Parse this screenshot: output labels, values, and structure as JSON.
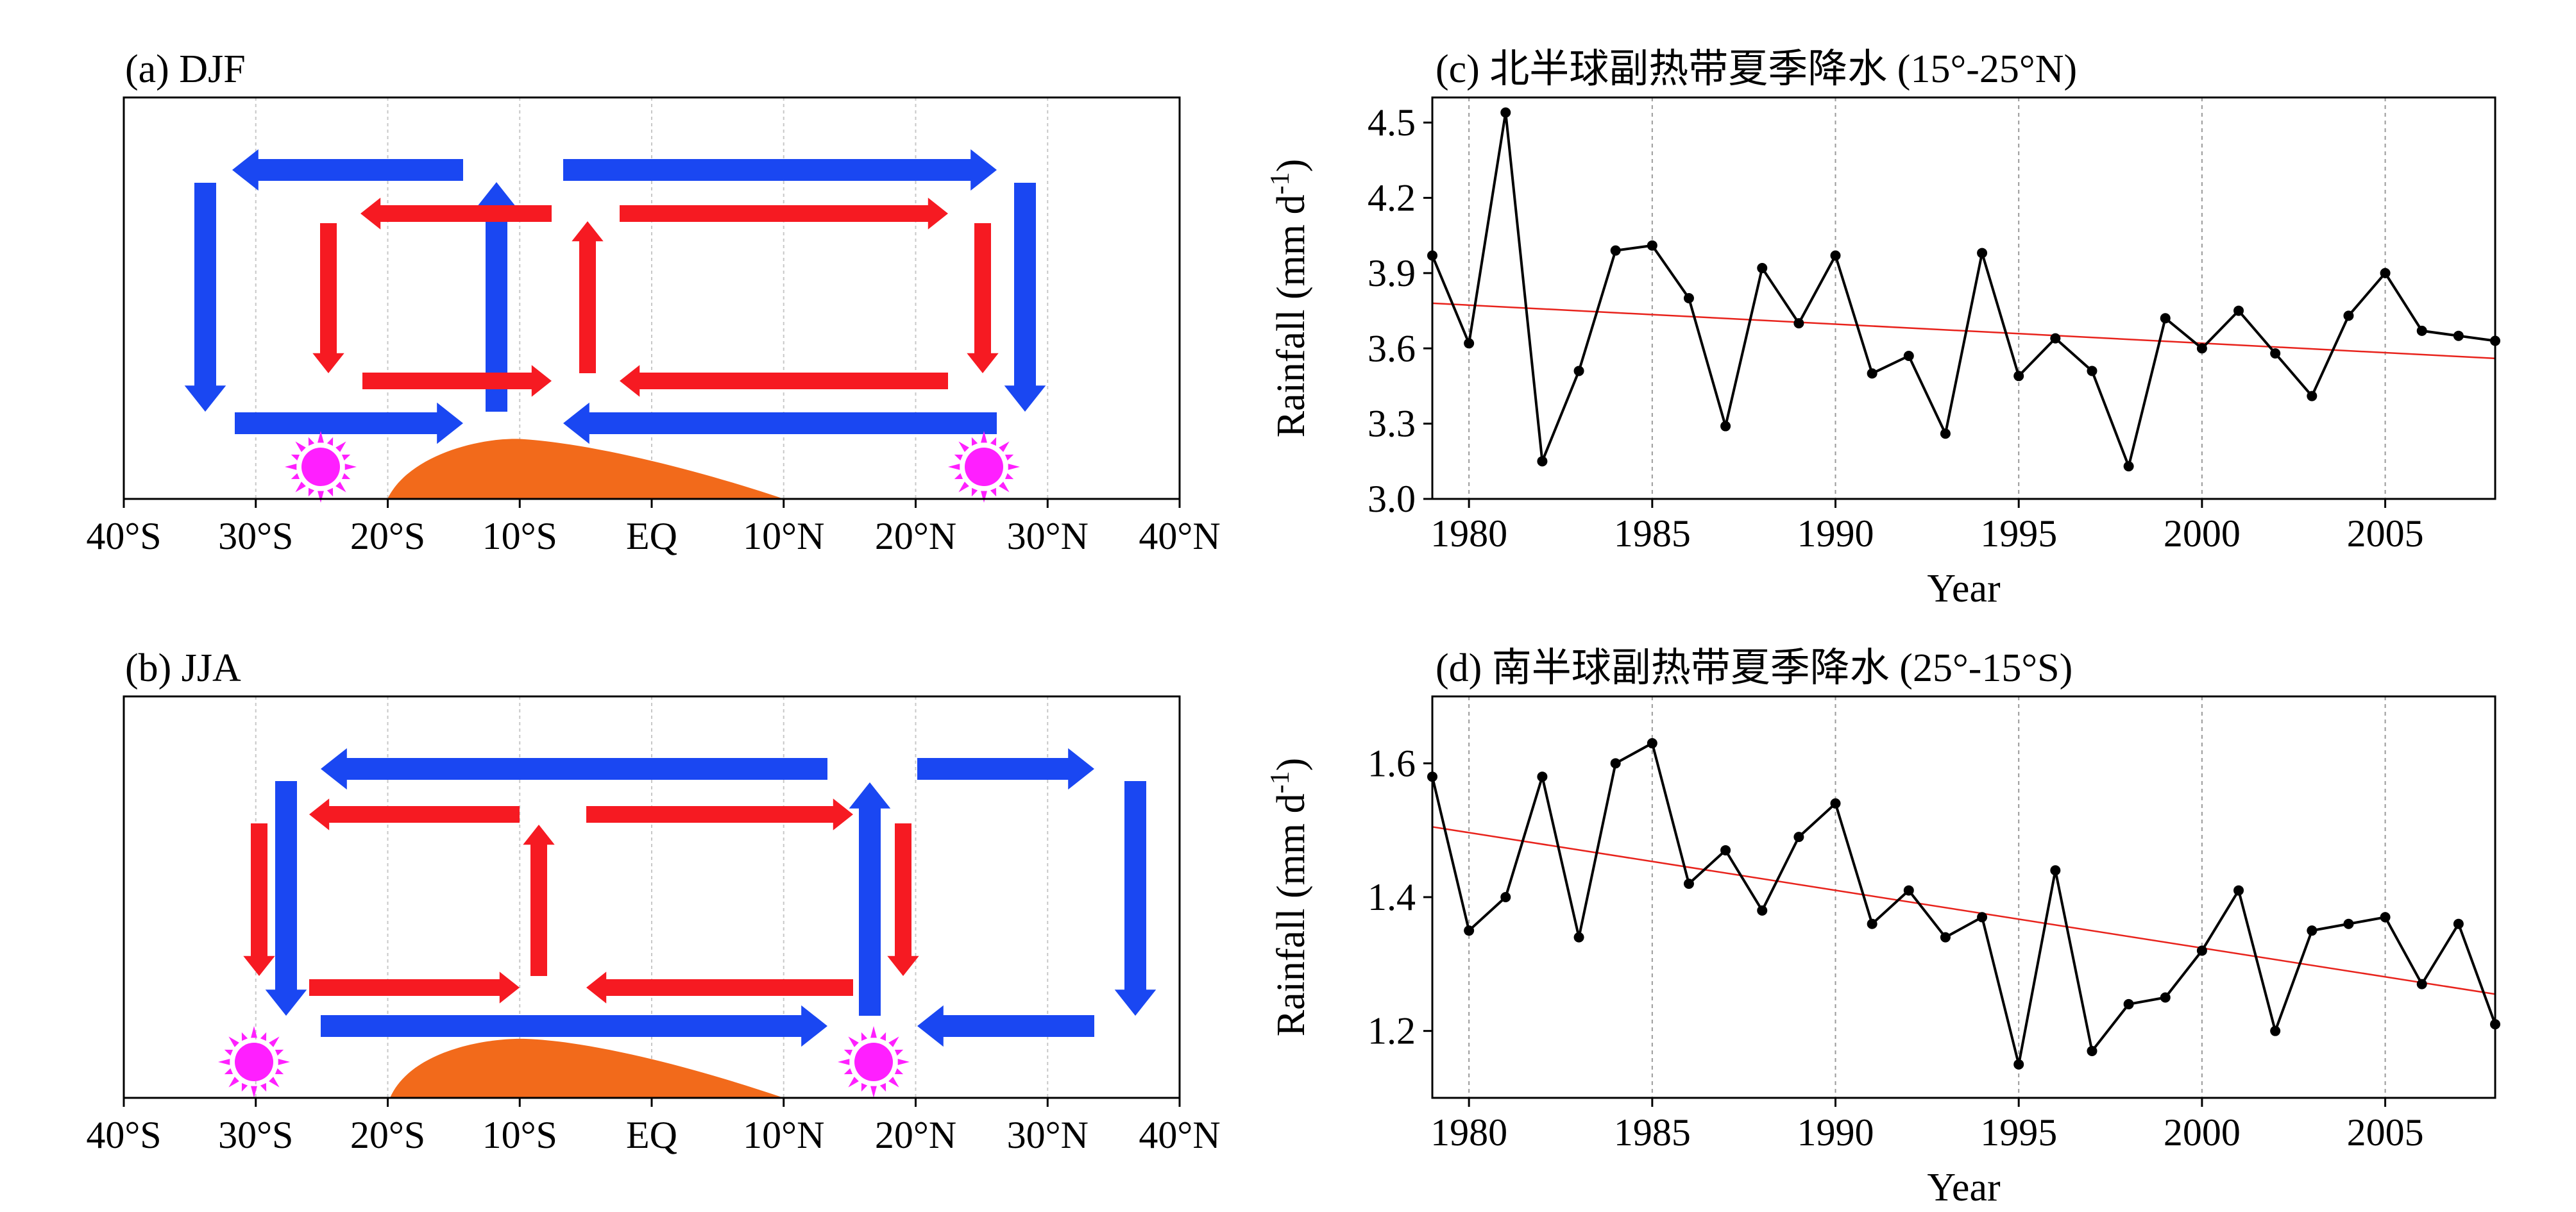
{
  "panels": {
    "a": {
      "label": "(a)  DJF"
    },
    "b": {
      "label": "(b)  JJA"
    },
    "c": {
      "label": "(c)  北半球副热带夏季降水 (15°-25°N)"
    },
    "d": {
      "label": "(d)  南半球副热带夏季降水 (25°-15°S)"
    }
  },
  "schematic_axis": {
    "ticks": [
      "40°S",
      "30°S",
      "20°S",
      "10°S",
      "EQ",
      "10°N",
      "20°N",
      "30°N",
      "40°N"
    ],
    "lat_values": [
      -40,
      -30,
      -20,
      -10,
      0,
      10,
      20,
      30,
      40
    ]
  },
  "colors": {
    "blue_circulation": "#1a47f2",
    "red_circulation": "#f61a22",
    "land": "#f26a1b",
    "sun": "#ff1fff",
    "trend": "#e8231c"
  },
  "chart_data": [
    {
      "type": "line",
      "title": "北半球副热带夏季降水 (15°-25°N)",
      "xlabel": "Year",
      "ylabel": "Rainfall (mm d-1)",
      "xlim": [
        1979,
        2008
      ],
      "ylim": [
        3.0,
        4.6
      ],
      "xticks": [
        1980,
        1985,
        1990,
        1995,
        2000,
        2005
      ],
      "yticks": [
        3.0,
        3.3,
        3.6,
        3.9,
        4.2,
        4.5
      ],
      "ytick_labels": [
        "3.0",
        "3.3",
        "3.6",
        "3.9",
        "4.2",
        "4.5"
      ],
      "grid": "vertical dashed",
      "x": [
        1979,
        1980,
        1981,
        1982,
        1983,
        1984,
        1985,
        1986,
        1987,
        1988,
        1989,
        1990,
        1991,
        1992,
        1993,
        1994,
        1995,
        1996,
        1997,
        1998,
        1999,
        2000,
        2001,
        2002,
        2003,
        2004,
        2005,
        2006,
        2007,
        2008
      ],
      "values": [
        3.97,
        3.62,
        4.54,
        3.15,
        3.51,
        3.99,
        4.01,
        3.8,
        3.29,
        3.92,
        3.7,
        3.97,
        3.5,
        3.57,
        3.26,
        3.98,
        3.49,
        3.64,
        3.51,
        3.13,
        3.72,
        3.6,
        3.75,
        3.58,
        3.41,
        3.73,
        3.9,
        3.67,
        3.65,
        3.63
      ],
      "trend": {
        "x": [
          1979,
          2008
        ],
        "y": [
          3.78,
          3.56
        ]
      }
    },
    {
      "type": "line",
      "title": "南半球副热带夏季降水 (25°-15°S)",
      "xlabel": "Year",
      "ylabel": "Rainfall (mm d-1)",
      "xlim": [
        1979,
        2008
      ],
      "ylim": [
        1.1,
        1.7
      ],
      "xticks": [
        1980,
        1985,
        1990,
        1995,
        2000,
        2005
      ],
      "yticks": [
        1.2,
        1.4,
        1.6
      ],
      "ytick_labels": [
        "1.2",
        "1.4",
        "1.6"
      ],
      "grid": "vertical dashed",
      "x": [
        1979,
        1980,
        1981,
        1982,
        1983,
        1984,
        1985,
        1986,
        1987,
        1988,
        1989,
        1990,
        1991,
        1992,
        1993,
        1994,
        1995,
        1996,
        1997,
        1998,
        1999,
        2000,
        2001,
        2002,
        2003,
        2004,
        2005,
        2006,
        2007,
        2008
      ],
      "values": [
        1.58,
        1.35,
        1.4,
        1.58,
        1.34,
        1.6,
        1.63,
        1.42,
        1.47,
        1.38,
        1.49,
        1.54,
        1.36,
        1.41,
        1.34,
        1.37,
        1.15,
        1.44,
        1.17,
        1.24,
        1.25,
        1.32,
        1.41,
        1.2,
        1.35,
        1.36,
        1.37,
        1.27,
        1.36,
        1.21
      ],
      "trend": {
        "x": [
          1979,
          2008
        ],
        "y": [
          1.505,
          1.255
        ]
      }
    }
  ]
}
